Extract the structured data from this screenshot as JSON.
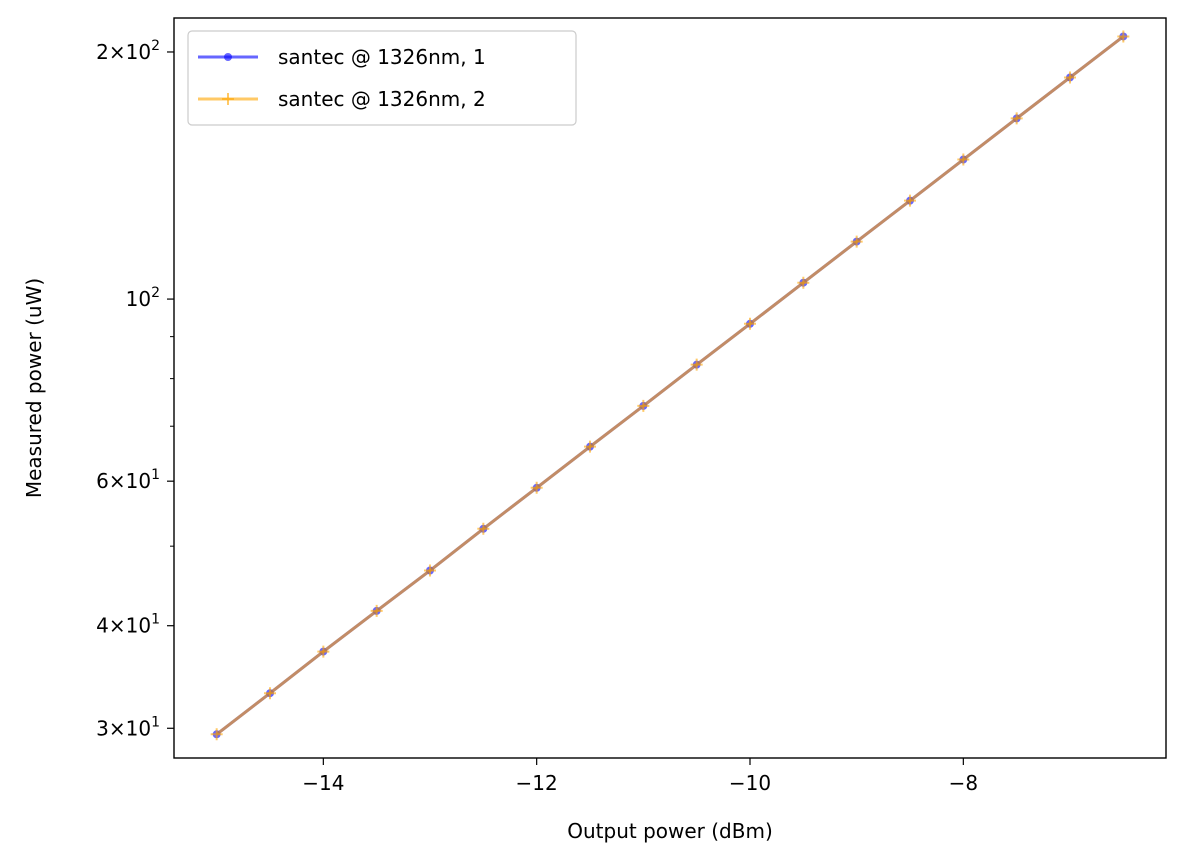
{
  "chart_data": {
    "type": "line",
    "title": "",
    "xlabel": "Output power (dBm)",
    "ylabel": "Measured power (uW)",
    "x_scale": "linear",
    "y_scale": "log",
    "xlim": [
      -15.4,
      -6.1
    ],
    "ylim": [
      27.6,
      220
    ],
    "grid": false,
    "legend_position": "top-left",
    "x_ticks": [
      {
        "value": -14,
        "label": "−14"
      },
      {
        "value": -12,
        "label": "−12"
      },
      {
        "value": -10,
        "label": "−10"
      },
      {
        "value": -8,
        "label": "−8"
      }
    ],
    "y_ticks": [
      {
        "value": 30,
        "coef": "3",
        "base": "10",
        "exp": "1",
        "times": "×"
      },
      {
        "value": 40,
        "coef": "4",
        "base": "10",
        "exp": "1",
        "times": "×"
      },
      {
        "value": 60,
        "coef": "6",
        "base": "10",
        "exp": "1",
        "times": "×"
      },
      {
        "value": 100,
        "coef": "",
        "base": "10",
        "exp": "2",
        "times": ""
      },
      {
        "value": 200,
        "coef": "2",
        "base": "10",
        "exp": "2",
        "times": "×"
      }
    ],
    "y_minor_ticks": [
      50,
      70,
      80,
      90
    ],
    "x": [
      -15,
      -14.5,
      -14,
      -13.5,
      -13,
      -12.5,
      -12,
      -11.5,
      -11,
      -10.5,
      -10,
      -9.5,
      -9,
      -8.5,
      -8,
      -7.5,
      -7,
      -6.5
    ],
    "series": [
      {
        "name": "santec @ 1326nm, 1",
        "color": "#0000ff",
        "marker": "circle",
        "values": [
          29.5,
          33.1,
          37.2,
          41.7,
          46.7,
          52.5,
          58.9,
          66.1,
          74.1,
          83.2,
          93.3,
          104.7,
          117.5,
          131.8,
          147.9,
          166.0,
          186.2,
          208.9
        ]
      },
      {
        "name": "santec @ 1326nm, 2",
        "color": "#ffa500",
        "marker": "plus",
        "values": [
          29.5,
          33.1,
          37.2,
          41.7,
          46.7,
          52.5,
          58.9,
          66.1,
          74.1,
          83.2,
          93.3,
          104.7,
          117.5,
          131.8,
          147.9,
          166.0,
          186.2,
          208.9
        ]
      }
    ]
  }
}
